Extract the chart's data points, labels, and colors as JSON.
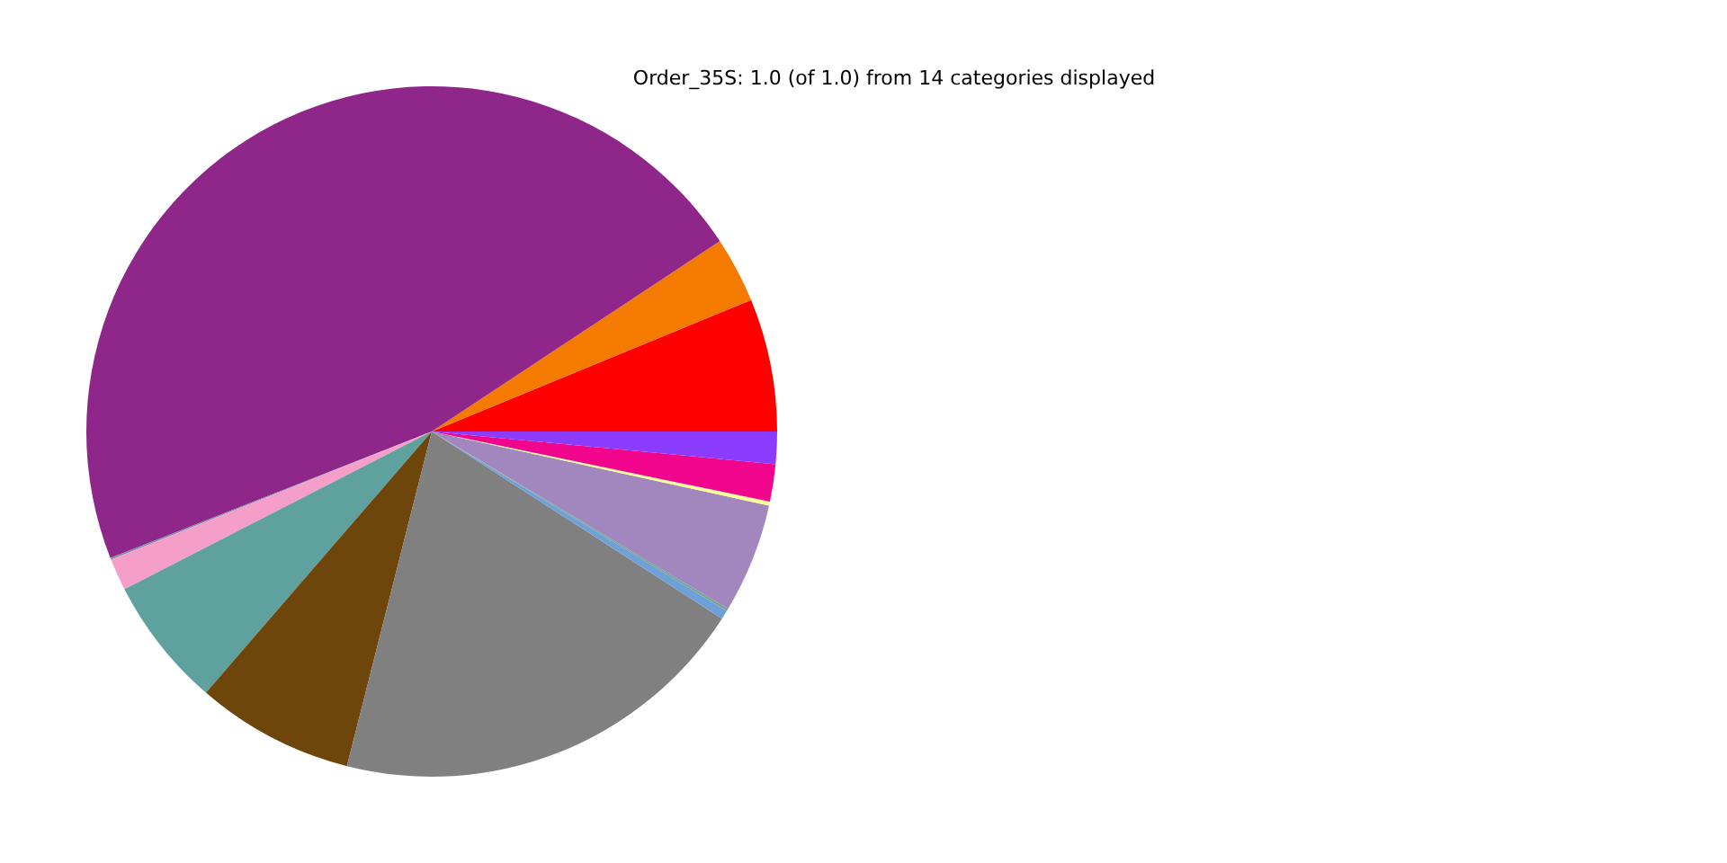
{
  "chart_data": {
    "type": "pie",
    "title": "Order_35S: 1.0 (of 1.0) from 14 categories displayed",
    "categories": [
      null,
      null,
      null,
      null,
      null,
      null,
      null,
      null,
      null,
      null,
      null,
      null,
      null,
      null
    ],
    "values": [
      6.22,
      3.08,
      46.67,
      0.08,
      1.5,
      6.11,
      7.39,
      19.83,
      0.42,
      0.11,
      5.14,
      0.19,
      1.75,
      1.51
    ],
    "colors": [
      "#ff0000",
      "#f47a00",
      "#8f278b",
      "#6f8fa8",
      "#f59fc8",
      "#5ea19e",
      "#6e460c",
      "#808080",
      "#70a0d8",
      "#6fa88f",
      "#a287bf",
      "#ffff99",
      "#f0058c",
      "#8b3cff"
    ]
  }
}
